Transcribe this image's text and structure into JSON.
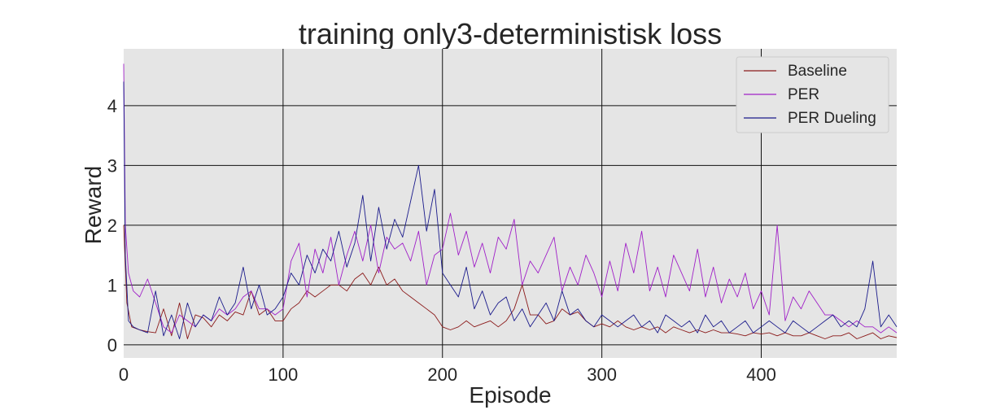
{
  "chart_data": {
    "type": "line",
    "title": "training only3-deterministisk loss",
    "xlabel": "Episode",
    "ylabel": "Reward",
    "xlim": [
      0,
      485
    ],
    "ylim": [
      -0.22,
      4.95
    ],
    "xticks": [
      0,
      100,
      200,
      300,
      400
    ],
    "yticks": [
      0,
      1,
      2,
      3,
      4
    ],
    "grid": true,
    "legend_position": "top-right",
    "series": [
      {
        "name": "Baseline",
        "color": "#8b1a1a",
        "x": [
          0,
          2,
          5,
          10,
          15,
          20,
          25,
          30,
          35,
          40,
          45,
          50,
          55,
          60,
          65,
          70,
          75,
          80,
          85,
          90,
          95,
          100,
          105,
          110,
          115,
          120,
          125,
          130,
          135,
          140,
          145,
          150,
          155,
          160,
          165,
          170,
          175,
          180,
          185,
          190,
          195,
          200,
          205,
          210,
          215,
          220,
          225,
          230,
          235,
          240,
          245,
          250,
          255,
          260,
          265,
          270,
          275,
          280,
          285,
          290,
          295,
          300,
          305,
          310,
          315,
          320,
          325,
          330,
          335,
          340,
          345,
          350,
          355,
          360,
          365,
          370,
          375,
          380,
          385,
          390,
          395,
          400,
          405,
          410,
          415,
          420,
          425,
          430,
          435,
          440,
          445,
          450,
          455,
          460,
          465,
          470,
          475,
          480,
          485
        ],
        "y": [
          2.0,
          0.7,
          0.3,
          0.25,
          0.22,
          0.2,
          0.6,
          0.15,
          0.7,
          0.1,
          0.5,
          0.45,
          0.3,
          0.5,
          0.4,
          0.55,
          0.5,
          0.9,
          0.5,
          0.6,
          0.4,
          0.4,
          0.6,
          0.7,
          0.9,
          0.8,
          0.9,
          1.0,
          1.0,
          0.9,
          1.1,
          1.2,
          1.0,
          1.3,
          1.0,
          1.1,
          0.9,
          0.8,
          0.7,
          0.6,
          0.5,
          0.3,
          0.25,
          0.3,
          0.4,
          0.3,
          0.35,
          0.4,
          0.3,
          0.4,
          0.6,
          1.0,
          0.5,
          0.5,
          0.35,
          0.4,
          0.6,
          0.5,
          0.55,
          0.4,
          0.3,
          0.35,
          0.3,
          0.4,
          0.3,
          0.25,
          0.3,
          0.25,
          0.3,
          0.2,
          0.3,
          0.25,
          0.2,
          0.25,
          0.2,
          0.25,
          0.2,
          0.2,
          0.18,
          0.15,
          0.2,
          0.18,
          0.2,
          0.15,
          0.2,
          0.15,
          0.15,
          0.2,
          0.15,
          0.1,
          0.15,
          0.15,
          0.2,
          0.1,
          0.15,
          0.2,
          0.1,
          0.15,
          0.12
        ]
      },
      {
        "name": "PER",
        "color": "#a020c8",
        "x": [
          0,
          1,
          3,
          6,
          10,
          15,
          20,
          25,
          30,
          35,
          40,
          45,
          50,
          55,
          60,
          65,
          70,
          75,
          80,
          85,
          90,
          95,
          100,
          105,
          110,
          115,
          120,
          125,
          130,
          135,
          140,
          145,
          150,
          155,
          160,
          165,
          170,
          175,
          180,
          185,
          190,
          195,
          200,
          205,
          210,
          215,
          220,
          225,
          230,
          235,
          240,
          245,
          250,
          255,
          260,
          265,
          270,
          275,
          280,
          285,
          290,
          295,
          300,
          305,
          310,
          315,
          320,
          325,
          330,
          335,
          340,
          345,
          350,
          355,
          360,
          365,
          370,
          375,
          380,
          385,
          390,
          395,
          400,
          405,
          410,
          415,
          420,
          425,
          430,
          435,
          440,
          445,
          450,
          455,
          460,
          465,
          470,
          475,
          480,
          485
        ],
        "y": [
          4.7,
          2.0,
          1.2,
          0.9,
          0.8,
          1.1,
          0.7,
          0.3,
          0.2,
          0.5,
          0.4,
          0.3,
          0.5,
          0.4,
          0.6,
          0.5,
          0.6,
          0.8,
          0.9,
          0.6,
          0.6,
          0.5,
          0.6,
          1.4,
          1.7,
          0.8,
          1.6,
          1.2,
          1.8,
          1.0,
          1.5,
          1.9,
          1.4,
          2.0,
          1.2,
          1.8,
          1.6,
          1.7,
          1.4,
          1.9,
          1.0,
          1.5,
          1.6,
          2.2,
          1.5,
          1.9,
          1.3,
          1.7,
          1.2,
          1.8,
          1.6,
          2.1,
          1.0,
          1.4,
          1.2,
          1.5,
          1.8,
          0.9,
          1.3,
          1.0,
          1.5,
          1.2,
          0.8,
          1.4,
          0.9,
          1.7,
          1.2,
          1.9,
          0.9,
          1.3,
          0.8,
          1.5,
          1.2,
          0.9,
          1.6,
          0.8,
          1.3,
          0.7,
          1.1,
          0.8,
          1.2,
          0.6,
          0.9,
          0.5,
          2.0,
          0.4,
          0.8,
          0.6,
          0.9,
          0.7,
          0.5,
          0.5,
          0.4,
          0.3,
          0.4,
          0.3,
          0.3,
          0.2,
          0.3,
          0.2
        ]
      },
      {
        "name": "PER Dueling",
        "color": "#1a1a8b",
        "x": [
          0,
          1,
          3,
          6,
          10,
          15,
          20,
          25,
          30,
          35,
          40,
          45,
          50,
          55,
          60,
          65,
          70,
          75,
          80,
          85,
          90,
          95,
          100,
          105,
          110,
          115,
          120,
          125,
          130,
          135,
          140,
          145,
          150,
          155,
          160,
          165,
          170,
          175,
          180,
          185,
          190,
          195,
          200,
          205,
          210,
          215,
          220,
          225,
          230,
          235,
          240,
          245,
          250,
          255,
          260,
          265,
          270,
          275,
          280,
          285,
          290,
          295,
          300,
          305,
          310,
          315,
          320,
          325,
          330,
          335,
          340,
          345,
          350,
          355,
          360,
          365,
          370,
          375,
          380,
          385,
          390,
          395,
          400,
          405,
          410,
          415,
          420,
          425,
          430,
          435,
          440,
          445,
          450,
          455,
          460,
          465,
          470,
          475,
          480,
          485
        ],
        "y": [
          4.4,
          1.5,
          0.4,
          0.3,
          0.25,
          0.2,
          0.9,
          0.15,
          0.5,
          0.1,
          0.7,
          0.3,
          0.5,
          0.4,
          0.8,
          0.5,
          0.7,
          1.3,
          0.6,
          1.0,
          0.5,
          0.6,
          0.8,
          1.2,
          1.0,
          1.5,
          1.2,
          1.6,
          1.4,
          1.9,
          1.3,
          1.7,
          2.5,
          1.4,
          2.3,
          1.6,
          2.1,
          1.8,
          2.4,
          3.0,
          1.9,
          2.6,
          1.2,
          1.0,
          0.8,
          1.3,
          0.6,
          0.9,
          0.5,
          0.7,
          0.8,
          0.4,
          0.6,
          0.3,
          0.5,
          0.7,
          0.4,
          0.9,
          0.5,
          0.6,
          0.4,
          0.3,
          0.5,
          0.4,
          0.3,
          0.4,
          0.5,
          0.3,
          0.4,
          0.2,
          0.5,
          0.4,
          0.3,
          0.4,
          0.2,
          0.5,
          0.3,
          0.4,
          0.2,
          0.3,
          0.4,
          0.2,
          0.3,
          0.4,
          0.3,
          0.2,
          0.4,
          0.3,
          0.2,
          0.3,
          0.4,
          0.5,
          0.3,
          0.4,
          0.3,
          0.6,
          1.4,
          0.3,
          0.5,
          0.3
        ]
      }
    ]
  }
}
